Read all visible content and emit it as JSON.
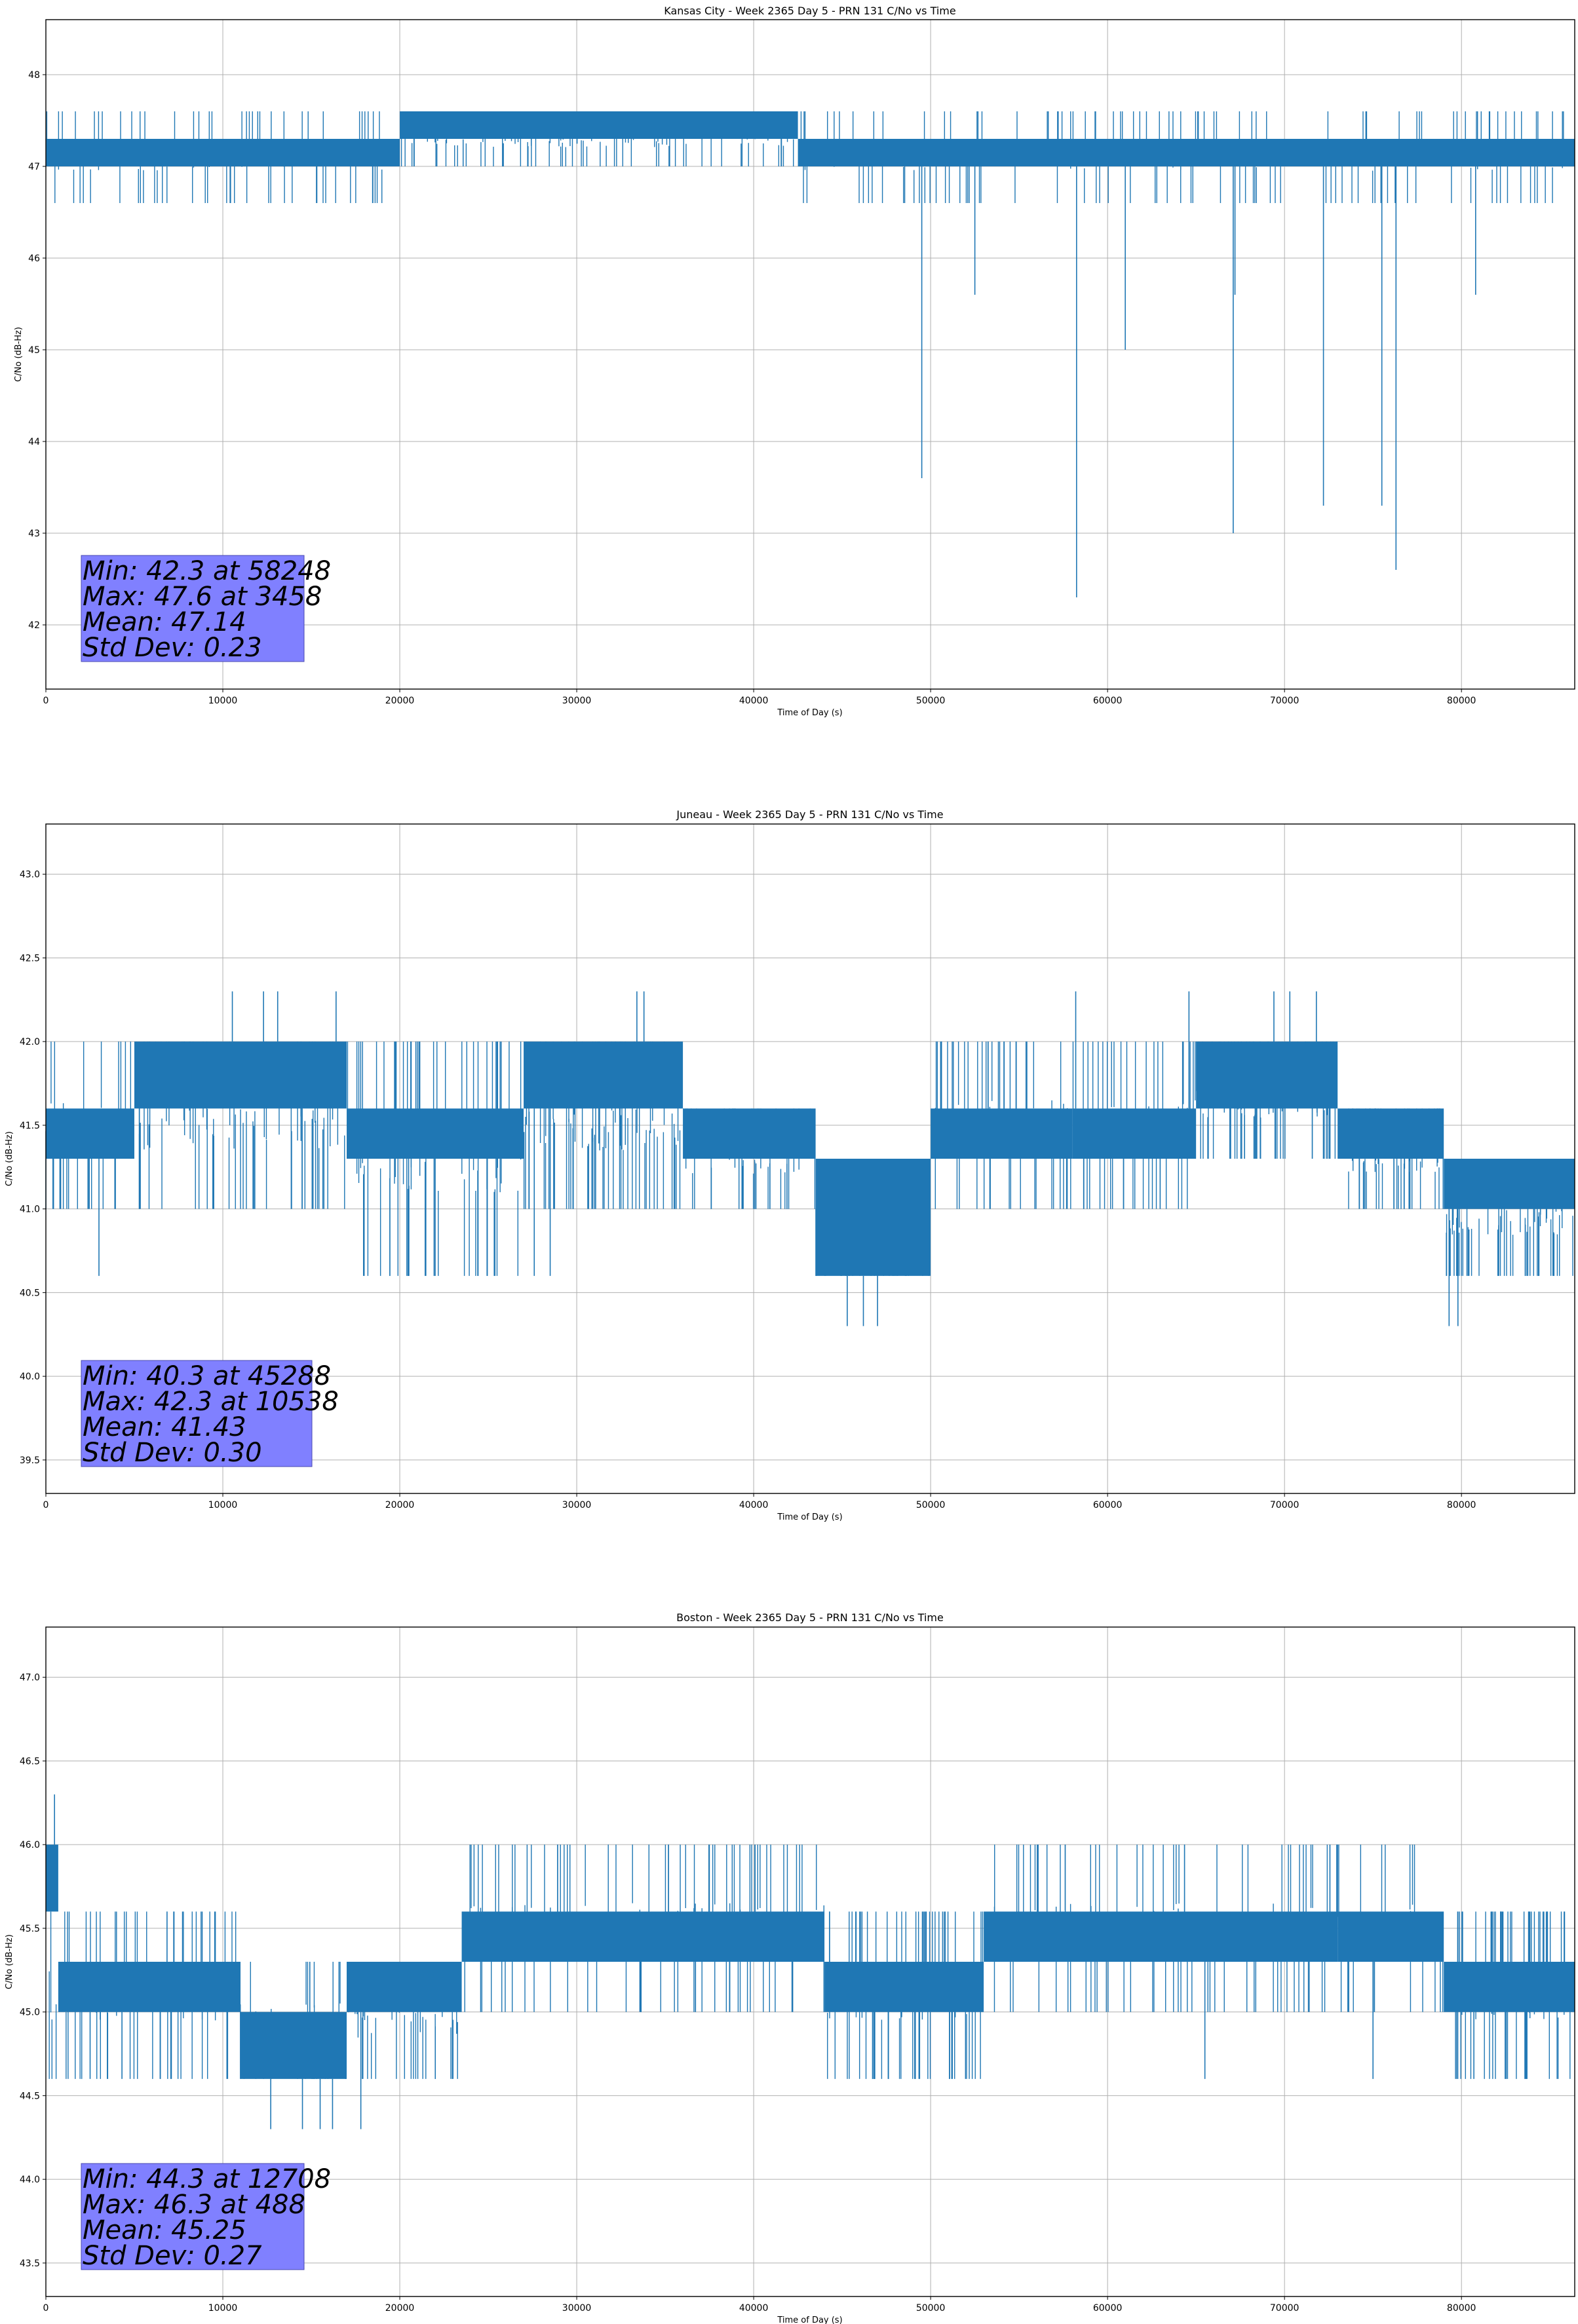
{
  "colors": {
    "series": "#1f77b4",
    "grid": "#b0b0b0",
    "stats_box": "#8080ff",
    "axes": "#000000"
  },
  "chart_data": [
    {
      "type": "line",
      "title": "Kansas City - Week 2365 Day 5 - PRN 131 C/No vs Time",
      "xlabel": "Time of Day (s)",
      "ylabel": "C/No (dB-Hz)",
      "xlim": [
        0,
        86400
      ],
      "ylim": [
        41.3,
        48.6
      ],
      "xticks": [
        0,
        10000,
        20000,
        30000,
        40000,
        50000,
        60000,
        70000,
        80000
      ],
      "xtick_labels": [
        "0",
        "10000",
        "20000",
        "30000",
        "40000",
        "50000",
        "60000",
        "70000",
        "80000"
      ],
      "yticks": [
        42,
        43,
        44,
        45,
        46,
        47,
        48
      ],
      "ytick_labels": [
        "42",
        "43",
        "44",
        "45",
        "46",
        "47",
        "48"
      ],
      "grid": true,
      "stats": [
        "Min: 42.3 at 58248",
        "Max: 47.6 at 3458",
        "Mean: 47.14",
        "Std Dev: 0.23"
      ],
      "series": [
        {
          "name": "PRN 131 C/No",
          "band_segments": [
            {
              "x": [
                0,
                20000
              ],
              "low": 47.0,
              "high": 47.3
            },
            {
              "x": [
                20000,
                42500
              ],
              "low": 47.3,
              "high": 47.6
            },
            {
              "x": [
                42500,
                86400
              ],
              "low": 47.0,
              "high": 47.3
            }
          ],
          "flicker_regions": [
            {
              "x": [
                0,
                20000
              ],
              "top": 47.6,
              "bottom": 46.6,
              "density": 70
            },
            {
              "x": [
                20000,
                42500
              ],
              "top": 47.6,
              "bottom": 47.0,
              "density": 110
            },
            {
              "x": [
                42500,
                86400
              ],
              "top": 47.6,
              "bottom": 46.6,
              "density": 140
            }
          ],
          "dips": [
            {
              "x": 49500,
              "y": 43.6
            },
            {
              "x": 52500,
              "y": 45.6
            },
            {
              "x": 58248,
              "y": 42.3
            },
            {
              "x": 61000,
              "y": 45.0
            },
            {
              "x": 67100,
              "y": 43.0
            },
            {
              "x": 67200,
              "y": 45.6
            },
            {
              "x": 72200,
              "y": 43.3
            },
            {
              "x": 75500,
              "y": 43.3
            },
            {
              "x": 76300,
              "y": 42.6
            },
            {
              "x": 80800,
              "y": 45.6
            }
          ]
        }
      ]
    },
    {
      "type": "line",
      "title": "Juneau - Week 2365 Day 5 - PRN 131 C/No vs Time",
      "xlabel": "Time of Day (s)",
      "ylabel": "C/No (dB-Hz)",
      "xlim": [
        0,
        86400
      ],
      "ylim": [
        39.3,
        43.3
      ],
      "xticks": [
        0,
        10000,
        20000,
        30000,
        40000,
        50000,
        60000,
        70000,
        80000
      ],
      "xtick_labels": [
        "0",
        "10000",
        "20000",
        "30000",
        "40000",
        "50000",
        "60000",
        "70000",
        "80000"
      ],
      "yticks": [
        39.5,
        40.0,
        40.5,
        41.0,
        41.5,
        42.0,
        42.5,
        43.0
      ],
      "ytick_labels": [
        "39.5",
        "40.0",
        "40.5",
        "41.0",
        "41.5",
        "42.0",
        "42.5",
        "43.0"
      ],
      "grid": true,
      "stats": [
        "Min: 40.3 at 45288",
        "Max: 42.3 at 10538",
        "Mean: 41.43",
        "Std Dev: 0.30"
      ],
      "series": [
        {
          "name": "PRN 131 C/No",
          "band_segments": [
            {
              "x": [
                0,
                5000
              ],
              "low": 41.3,
              "high": 41.6
            },
            {
              "x": [
                5000,
                17000
              ],
              "low": 41.6,
              "high": 42.0
            },
            {
              "x": [
                17000,
                27000
              ],
              "low": 41.3,
              "high": 41.6
            },
            {
              "x": [
                27000,
                36000
              ],
              "low": 41.6,
              "high": 42.0
            },
            {
              "x": [
                36000,
                43500
              ],
              "low": 41.3,
              "high": 41.6
            },
            {
              "x": [
                43500,
                50000
              ],
              "low": 40.6,
              "high": 41.3
            },
            {
              "x": [
                50000,
                58000
              ],
              "low": 41.3,
              "high": 41.6
            },
            {
              "x": [
                58000,
                65000
              ],
              "low": 41.3,
              "high": 41.6
            },
            {
              "x": [
                65000,
                73000
              ],
              "low": 41.6,
              "high": 42.0
            },
            {
              "x": [
                73000,
                79000
              ],
              "low": 41.3,
              "high": 41.6
            },
            {
              "x": [
                79000,
                86400
              ],
              "low": 41.0,
              "high": 41.3
            }
          ],
          "flicker_regions": [
            {
              "x": [
                0,
                17000
              ],
              "top": 42.0,
              "bottom": 41.0,
              "density": 90
            },
            {
              "x": [
                17000,
                27000
              ],
              "top": 42.0,
              "bottom": 40.6,
              "density": 60
            },
            {
              "x": [
                27000,
                36000
              ],
              "top": 42.0,
              "bottom": 41.0,
              "density": 70
            },
            {
              "x": [
                36000,
                43500
              ],
              "top": 41.6,
              "bottom": 41.0,
              "density": 40
            },
            {
              "x": [
                43500,
                50000
              ],
              "top": 41.3,
              "bottom": 40.6,
              "density": 60
            },
            {
              "x": [
                50000,
                65000
              ],
              "top": 42.0,
              "bottom": 41.0,
              "density": 90
            },
            {
              "x": [
                65000,
                73000
              ],
              "top": 42.0,
              "bottom": 41.3,
              "density": 80
            },
            {
              "x": [
                73000,
                79000
              ],
              "top": 41.6,
              "bottom": 41.0,
              "density": 50
            },
            {
              "x": [
                79000,
                86400
              ],
              "top": 41.3,
              "bottom": 40.6,
              "density": 70
            }
          ],
          "dips": [
            {
              "x": 3000,
              "y": 40.6
            },
            {
              "x": 20500,
              "y": 40.6
            },
            {
              "x": 22000,
              "y": 40.6
            },
            {
              "x": 27600,
              "y": 40.6
            },
            {
              "x": 28500,
              "y": 40.6
            },
            {
              "x": 45288,
              "y": 40.3
            },
            {
              "x": 46200,
              "y": 40.3
            },
            {
              "x": 47000,
              "y": 40.3
            },
            {
              "x": 79300,
              "y": 40.3
            },
            {
              "x": 79800,
              "y": 40.3
            }
          ],
          "spikes": [
            {
              "x": 10538,
              "y": 42.3
            },
            {
              "x": 12300,
              "y": 42.3
            },
            {
              "x": 13100,
              "y": 42.3
            },
            {
              "x": 16400,
              "y": 42.3
            },
            {
              "x": 33400,
              "y": 42.3
            },
            {
              "x": 33800,
              "y": 42.3
            },
            {
              "x": 58200,
              "y": 42.3
            },
            {
              "x": 64600,
              "y": 42.3
            },
            {
              "x": 69400,
              "y": 42.3
            },
            {
              "x": 70300,
              "y": 42.3
            },
            {
              "x": 71800,
              "y": 42.3
            }
          ]
        }
      ]
    },
    {
      "type": "line",
      "title": "Boston - Week 2365 Day 5 - PRN 131 C/No vs Time",
      "xlabel": "Time of Day (s)",
      "ylabel": "C/No (dB-Hz)",
      "xlim": [
        0,
        86400
      ],
      "ylim": [
        43.3,
        47.3
      ],
      "xticks": [
        0,
        10000,
        20000,
        30000,
        40000,
        50000,
        60000,
        70000,
        80000
      ],
      "xtick_labels": [
        "0",
        "10000",
        "20000",
        "30000",
        "40000",
        "50000",
        "60000",
        "70000",
        "80000"
      ],
      "yticks": [
        43.5,
        44.0,
        44.5,
        45.0,
        45.5,
        46.0,
        46.5,
        47.0
      ],
      "ytick_labels": [
        "43.5",
        "44.0",
        "44.5",
        "45.0",
        "45.5",
        "46.0",
        "46.5",
        "47.0"
      ],
      "grid": true,
      "stats": [
        "Min: 44.3 at 12708",
        "Max: 46.3 at 488",
        "Mean: 45.25",
        "Std Dev: 0.27"
      ],
      "series": [
        {
          "name": "PRN 131 C/No",
          "band_segments": [
            {
              "x": [
                0,
                700
              ],
              "low": 45.6,
              "high": 46.0
            },
            {
              "x": [
                700,
                11000
              ],
              "low": 45.0,
              "high": 45.3
            },
            {
              "x": [
                11000,
                17000
              ],
              "low": 44.6,
              "high": 45.0
            },
            {
              "x": [
                17000,
                23500
              ],
              "low": 45.0,
              "high": 45.3
            },
            {
              "x": [
                23500,
                44000
              ],
              "low": 45.3,
              "high": 45.6
            },
            {
              "x": [
                44000,
                53000
              ],
              "low": 45.0,
              "high": 45.3
            },
            {
              "x": [
                53000,
                73000
              ],
              "low": 45.3,
              "high": 45.6
            },
            {
              "x": [
                73000,
                79000
              ],
              "low": 45.3,
              "high": 45.6
            },
            {
              "x": [
                79000,
                86400
              ],
              "low": 45.0,
              "high": 45.3
            }
          ],
          "flicker_regions": [
            {
              "x": [
                0,
                11000
              ],
              "top": 45.6,
              "bottom": 44.6,
              "density": 60
            },
            {
              "x": [
                11000,
                23500
              ],
              "top": 45.3,
              "bottom": 44.6,
              "density": 60
            },
            {
              "x": [
                23500,
                44000
              ],
              "top": 46.0,
              "bottom": 45.0,
              "density": 90
            },
            {
              "x": [
                44000,
                53000
              ],
              "top": 45.6,
              "bottom": 44.6,
              "density": 70
            },
            {
              "x": [
                53000,
                79000
              ],
              "top": 46.0,
              "bottom": 45.0,
              "density": 100
            },
            {
              "x": [
                79000,
                86400
              ],
              "top": 45.6,
              "bottom": 44.6,
              "density": 60
            }
          ],
          "dips": [
            {
              "x": 2500,
              "y": 44.6
            },
            {
              "x": 4300,
              "y": 44.6
            },
            {
              "x": 12708,
              "y": 44.3
            },
            {
              "x": 14500,
              "y": 44.3
            },
            {
              "x": 15500,
              "y": 44.3
            },
            {
              "x": 16200,
              "y": 44.3
            },
            {
              "x": 17800,
              "y": 44.3
            },
            {
              "x": 65500,
              "y": 44.6
            },
            {
              "x": 75000,
              "y": 44.6
            },
            {
              "x": 80700,
              "y": 44.6
            },
            {
              "x": 82600,
              "y": 44.6
            }
          ],
          "spikes": [
            {
              "x": 488,
              "y": 46.3
            }
          ]
        }
      ]
    }
  ]
}
